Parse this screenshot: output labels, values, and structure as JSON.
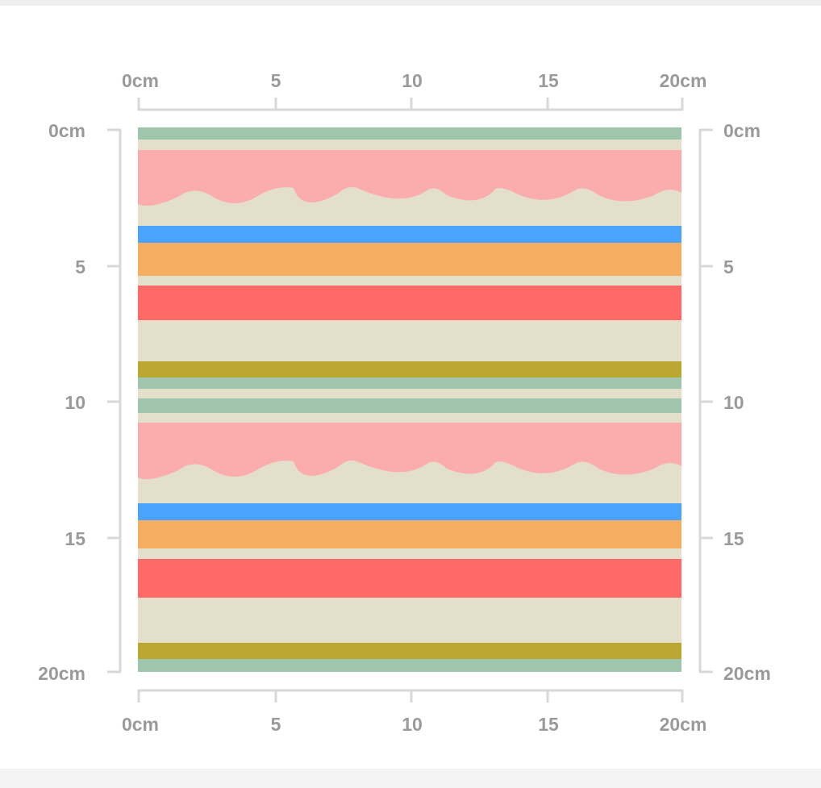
{
  "ruler": {
    "top_labels": [
      "0cm",
      "5",
      "10",
      "15",
      "20cm"
    ],
    "bottom_labels": [
      "0cm",
      "5",
      "10",
      "15",
      "20cm"
    ],
    "left_labels": [
      "0cm",
      "5",
      "10",
      "15",
      "20cm"
    ],
    "right_labels": [
      "0cm",
      "5",
      "10",
      "15",
      "20cm"
    ]
  },
  "colors": {
    "background": "#e4dfca",
    "sage": "#9fc5ad",
    "pink": "#fbacac",
    "blue": "#4aa3fd",
    "orange": "#f5ad62",
    "coral": "#ff6a68",
    "olive": "#b9a731",
    "ruler": "#d8d8d8",
    "label": "#9a9a9a"
  }
}
